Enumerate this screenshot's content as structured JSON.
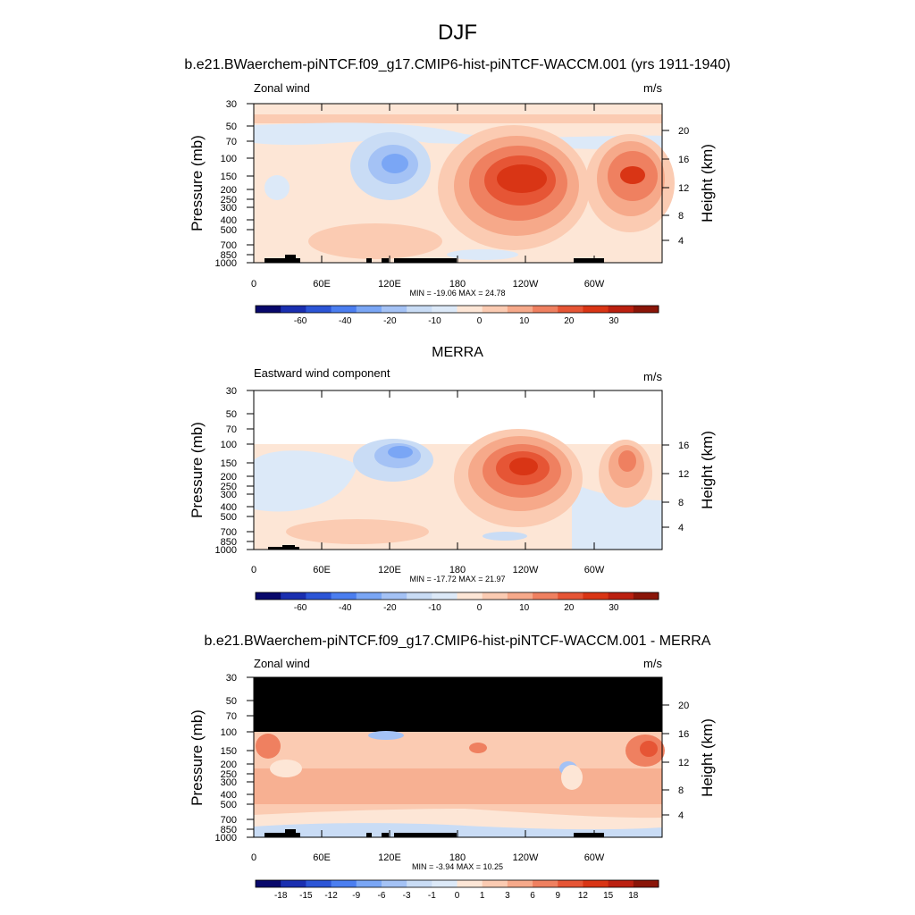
{
  "page_title": "DJF",
  "colors": {
    "levels_blue_to_red": [
      "#08086b",
      "#1a2fb0",
      "#2c55d6",
      "#4b7ef0",
      "#7aa6f5",
      "#a4c2f5",
      "#c9dcf5",
      "#dce9f8",
      "#fde6d6",
      "#fbcbb2",
      "#f6a98a",
      "#ef8060",
      "#e65535",
      "#d93515",
      "#bb2010",
      "#8a1508"
    ],
    "black": "#000000"
  },
  "chart_data": [
    {
      "type": "heatmap",
      "title": "b.e21.BWaerchem-piNTCF.f09_g17.CMIP6-hist-piNTCF-WACCM.001 (yrs 1911-1940)",
      "left_label": "Zonal wind",
      "right_label": "m/s",
      "ylabel": "Pressure (mb)",
      "ylabel_right": "Height (km)",
      "xticks": [
        "0",
        "60E",
        "120E",
        "180",
        "120W",
        "60W"
      ],
      "yticks": [
        "30",
        "50",
        "70",
        "100",
        "150",
        "200",
        "250",
        "300",
        "400",
        "500",
        "700",
        "850",
        "1000"
      ],
      "yticks_right": [
        "20",
        "16",
        "12",
        "8",
        "4"
      ],
      "min_max": "MIN = -19.06  MAX =  24.78",
      "colorbar_labels": [
        "-60",
        "-40",
        "-20",
        "-10",
        "0",
        "10",
        "20",
        "30"
      ],
      "data_region": "full",
      "features": [
        {
          "lon": 210,
          "p": 160,
          "value": 24.78
        },
        {
          "lon": 312,
          "p": 150,
          "value": 22
        },
        {
          "lon": 135,
          "p": 110,
          "value": -19.06
        },
        {
          "lon": 30,
          "p": 170,
          "value": -5
        }
      ]
    },
    {
      "type": "heatmap",
      "title": "MERRA",
      "left_label": "Eastward wind component",
      "right_label": "m/s",
      "ylabel": "Pressure (mb)",
      "ylabel_right": "Height (km)",
      "xticks": [
        "0",
        "60E",
        "120E",
        "180",
        "120W",
        "60W"
      ],
      "yticks": [
        "30",
        "50",
        "70",
        "100",
        "150",
        "200",
        "250",
        "300",
        "400",
        "500",
        "700",
        "850",
        "1000"
      ],
      "yticks_right": [
        "16",
        "12",
        "8",
        "4"
      ],
      "min_max": "MIN = -17.72  MAX =  21.97",
      "colorbar_labels": [
        "-60",
        "-40",
        "-20",
        "-10",
        "0",
        "10",
        "20",
        "30"
      ],
      "data_region": "below_100mb",
      "features": [
        {
          "lon": 230,
          "p": 160,
          "value": 21.97
        },
        {
          "lon": 320,
          "p": 155,
          "value": 15
        },
        {
          "lon": 135,
          "p": 120,
          "value": -17.72
        }
      ]
    },
    {
      "type": "heatmap",
      "title": "b.e21.BWaerchem-piNTCF.f09_g17.CMIP6-hist-piNTCF-WACCM.001 - MERRA",
      "left_label": "Zonal wind",
      "right_label": "m/s",
      "ylabel": "Pressure (mb)",
      "ylabel_right": "Height (km)",
      "xticks": [
        "0",
        "60E",
        "120E",
        "180",
        "120W",
        "60W"
      ],
      "yticks": [
        "30",
        "50",
        "70",
        "100",
        "150",
        "200",
        "250",
        "300",
        "400",
        "500",
        "700",
        "850",
        "1000"
      ],
      "yticks_right": [
        "20",
        "16",
        "12",
        "8",
        "4"
      ],
      "min_max": "MIN =  -3.94  MAX =  10.25",
      "colorbar_labels": [
        "-18",
        "-15",
        "-12",
        "-9",
        "-6",
        "-3",
        "-1",
        "0",
        "1",
        "3",
        "6",
        "9",
        "12",
        "15",
        "18"
      ],
      "data_region": "below_100mb_black_above",
      "features": [
        {
          "lon": 340,
          "p": 140,
          "value": 10.25
        },
        {
          "lon": 270,
          "p": 200,
          "value": -3.94
        }
      ]
    }
  ]
}
